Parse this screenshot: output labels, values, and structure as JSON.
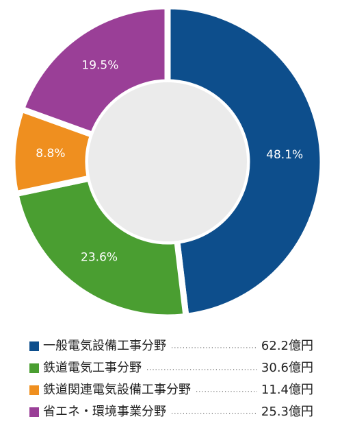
{
  "chart_data": {
    "type": "donut",
    "categories": [
      "一般電気設備工事分野",
      "鉄道電気工事分野",
      "鉄道関連電気設備工事分野",
      "省エネ・環境事業分野"
    ],
    "values": [
      48.1,
      23.6,
      8.8,
      19.5
    ],
    "value_labels": [
      "48.1%",
      "23.6%",
      "8.8%",
      "19.5%"
    ],
    "amounts": [
      62.2,
      30.6,
      11.4,
      25.3
    ],
    "amount_labels": [
      "62.2億円",
      "30.6億円",
      "11.4億円",
      "25.3億円"
    ],
    "colors": [
      "#0d4e8c",
      "#4a9e31",
      "#ef8f1f",
      "#9a3f97"
    ]
  }
}
